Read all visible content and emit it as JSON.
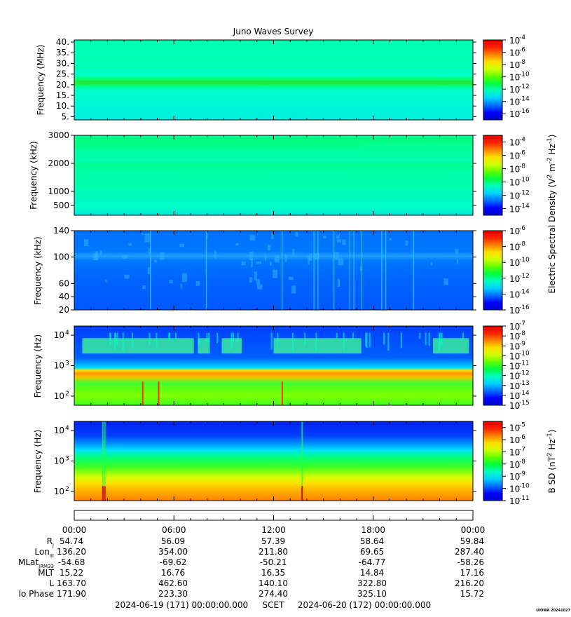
{
  "title": "Juno Waves Survey",
  "colors": {
    "scale": [
      "#0000cc",
      "#0000ff",
      "#0070ff",
      "#00d0ff",
      "#00ffc0",
      "#00ff40",
      "#60ff00",
      "#d0ff00",
      "#ffe000",
      "#ff8000",
      "#ff2000",
      "#e00000"
    ]
  },
  "panels": [
    {
      "id": "mhz",
      "ylabel": "Frequency (MHz)",
      "yscale": "linear",
      "ylim": [
        3.5,
        41
      ],
      "yticks": [
        {
          "v": 5,
          "label": "5."
        },
        {
          "v": 10,
          "label": "10."
        },
        {
          "v": 15,
          "label": "15."
        },
        {
          "v": 20,
          "label": "20."
        },
        {
          "v": 25,
          "label": "25."
        },
        {
          "v": 30,
          "label": "30."
        },
        {
          "v": 35,
          "label": "35."
        },
        {
          "v": 40,
          "label": "40."
        }
      ],
      "cbar_ticks": [
        "-4",
        "-6",
        "-8",
        "-10",
        "-12",
        "-14",
        "-16"
      ],
      "cbar_range": [
        -17,
        -4
      ]
    },
    {
      "id": "khz_high",
      "ylabel": "Frequency (kHz)",
      "yscale": "linear",
      "ylim": [
        150,
        3000
      ],
      "yticks": [
        {
          "v": 500,
          "label": "500"
        },
        {
          "v": 1000,
          "label": "1000"
        },
        {
          "v": 2000,
          "label": "2000"
        },
        {
          "v": 3000,
          "label": "3000"
        }
      ],
      "cbar_ticks": [
        "-4",
        "-6",
        "-8",
        "-10",
        "-12",
        "-14"
      ],
      "cbar_range": [
        -15,
        -3
      ]
    },
    {
      "id": "khz_low",
      "ylabel": "Frequency (kHz)",
      "yscale": "linear",
      "ylim": [
        20,
        140
      ],
      "yticks": [
        {
          "v": 20,
          "label": "20"
        },
        {
          "v": 40,
          "label": "40"
        },
        {
          "v": 60,
          "label": "60"
        },
        {
          "v": 100,
          "label": "100"
        },
        {
          "v": 140,
          "label": "140"
        }
      ],
      "cbar_ticks": [
        "-6",
        "-8",
        "-10",
        "-12",
        "-14",
        "-16"
      ],
      "cbar_range": [
        -16,
        -6
      ]
    },
    {
      "id": "hz_e",
      "ylabel": "Frequency (Hz)",
      "yscale": "log",
      "ylim": [
        50,
        20000
      ],
      "yticks": [
        {
          "v": 100,
          "label": "10",
          "exp": "2"
        },
        {
          "v": 1000,
          "label": "10",
          "exp": "3"
        },
        {
          "v": 10000,
          "label": "10",
          "exp": "4"
        }
      ],
      "cbar_ticks": [
        "-7",
        "-8",
        "-9",
        "-10",
        "-11",
        "-12",
        "-13",
        "-14",
        "-15"
      ],
      "cbar_range": [
        -15,
        -7
      ]
    },
    {
      "id": "hz_b",
      "ylabel": "Frequency (Hz)",
      "yscale": "log",
      "ylim": [
        50,
        20000
      ],
      "yticks": [
        {
          "v": 100,
          "label": "10",
          "exp": "2"
        },
        {
          "v": 1000,
          "label": "10",
          "exp": "3"
        },
        {
          "v": 10000,
          "label": "10",
          "exp": "4"
        }
      ],
      "cbar_ticks": [
        "-5",
        "-6",
        "-7",
        "-8",
        "-9",
        "-10",
        "-11"
      ],
      "cbar_range": [
        -11,
        -4.5
      ]
    }
  ],
  "cbar_base": "10",
  "colorbar_labels": {
    "electric": {
      "text": "Electric Spectral Density (V",
      "sup1": "2",
      "mid": " m",
      "sup2": "-2",
      "mid2": " Hz",
      "sup3": "-1",
      "end": ")"
    },
    "magnetic": {
      "text": "B SD (nT",
      "sup1": "2",
      "mid": " Hz",
      "sup2": "-1",
      "end": ")"
    }
  },
  "chart_data": {
    "type": "heatmap",
    "title": "Juno Waves Survey",
    "x": {
      "label": "SCET",
      "range_hours": [
        0,
        24
      ],
      "ticks": [
        "00:00",
        "06:00",
        "12:00",
        "18:00",
        "00:00"
      ],
      "start": "2024-06-19 (171) 00:00:00.000",
      "end": "2024-06-20 (172) 00:00:00.000"
    },
    "series": [
      {
        "panel": "mhz",
        "features": [
          {
            "freq_mhz": 21,
            "type": "narrowband-line"
          }
        ]
      },
      {
        "panel": "hz_e",
        "features": [
          {
            "freq_hz": [
              500,
              800
            ],
            "type": "intense-band"
          }
        ]
      },
      {
        "panel": "hz_b",
        "features": [
          {
            "freq_hz": [
              50,
              150
            ],
            "type": "intense-band"
          }
        ]
      }
    ]
  },
  "ephemeris": {
    "rows": [
      {
        "label": "R",
        "sub": "J",
        "values": [
          "54.74",
          "56.09",
          "57.39",
          "58.64",
          "59.84"
        ]
      },
      {
        "label": "Lon",
        "sub": "III",
        "values": [
          "136.20",
          "354.00",
          "211.80",
          "69.65",
          "287.40"
        ]
      },
      {
        "label": "MLat",
        "sub": "JRM33",
        "values": [
          "-54.68",
          "-69.62",
          "-50.21",
          "-64.77",
          "-58.26"
        ]
      },
      {
        "label": "MLT",
        "sub": "",
        "values": [
          "15.22",
          "16.76",
          "16.35",
          "14.84",
          "17.16"
        ]
      },
      {
        "label": "L",
        "sub": "",
        "values": [
          "163.70",
          "462.60",
          "140.10",
          "322.80",
          "216.20"
        ]
      },
      {
        "label": "Io Phase",
        "sub": "",
        "values": [
          "171.90",
          "223.30",
          "274.40",
          "325.10",
          "15.72"
        ]
      }
    ]
  },
  "footer": {
    "start": "2024-06-19 (171) 00:00:00.000",
    "label": "SCET",
    "end": "2024-06-20 (172) 00:00:00.000"
  },
  "watermark": "UIOWA 20241027"
}
